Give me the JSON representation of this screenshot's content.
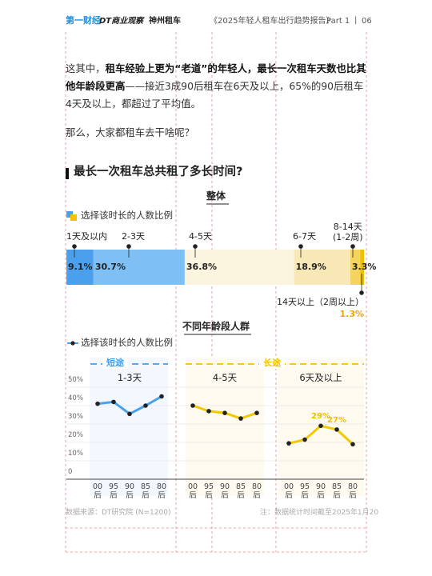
{
  "header": {
    "logos": [
      "第一财经",
      "DT商业观察",
      "神州租车"
    ],
    "report": "《2025年轻人租车出行趋势报告》",
    "part": "Part 1",
    "page": "06"
  },
  "paragraphs": [
    [
      {
        "text": "这其中，"
      },
      {
        "text": "租车经验上更为“老道”的年轻人，最长一次租车天数也比其他年龄段更高",
        "bold": true
      },
      {
        "text": "——接近3成90后租车在6天及以上，65%的90后租车4天及以上，都超过了平均值。"
      }
    ],
    [
      {
        "text": "那么，大家都租车去干啥呢？"
      }
    ]
  ],
  "section_title": "最长一次租车总共租了多长时间?",
  "chart_data": [
    {
      "type": "stacked_bar",
      "title": "整体",
      "legend": "选择该时长的人数比例",
      "categories": [
        "1天及以内",
        "2-3天",
        "4-5天",
        "6-7天",
        "8-14天\n(1-2周)",
        "14天以上（2周以上）"
      ],
      "values": [
        9.1,
        30.7,
        36.8,
        18.9,
        3.3,
        1.3
      ],
      "value_labels": [
        "9.1%",
        "30.7%",
        "36.8%",
        "18.9%",
        "3.3%",
        "1.3%"
      ],
      "colors": [
        "#4aa0ec",
        "#7ec0f4",
        "#fbf4df",
        "#f7e8b6",
        "#f4d45e",
        "#f0c000"
      ]
    },
    {
      "type": "line_panels",
      "title": "不同年龄段人群",
      "legend": "选择该时长的人数比例",
      "groups": [
        {
          "name": "短途",
          "color": "#3fa0ef"
        },
        {
          "name": "长途",
          "color": "#f2c200"
        }
      ],
      "categories": [
        "00\n后",
        "95\n后",
        "90\n后",
        "85\n后",
        "80\n后"
      ],
      "ylim": [
        0,
        50
      ],
      "yticks": [
        0,
        {
          "value": 10,
          "label": "10%"
        },
        {
          "value": 20,
          "label": "20%"
        },
        {
          "value": 30,
          "label": "30%"
        },
        {
          "value": 40,
          "label": "40%"
        },
        {
          "value": 50,
          "label": "50%"
        }
      ],
      "grid": true,
      "panels": [
        {
          "title": "1-3天",
          "color": "#4aa0ea",
          "values": [
            41,
            42,
            35.5,
            40,
            45
          ],
          "value_labels": [
            null,
            null,
            null,
            null,
            null
          ]
        },
        {
          "title": "4-5天",
          "color": "#f2c800",
          "values": [
            40,
            37,
            36,
            33,
            36
          ],
          "value_labels": [
            null,
            null,
            null,
            null,
            null
          ]
        },
        {
          "title": "6天及以上",
          "color": "#f2c800",
          "values": [
            19.5,
            21.5,
            29,
            27,
            19
          ],
          "value_labels": [
            null,
            null,
            "29%",
            "27%",
            null
          ]
        }
      ]
    }
  ],
  "footer": {
    "source": "数据来源：DT研究院 (N=1200)",
    "note": "注：数据统计时间截至2025年1月20"
  }
}
